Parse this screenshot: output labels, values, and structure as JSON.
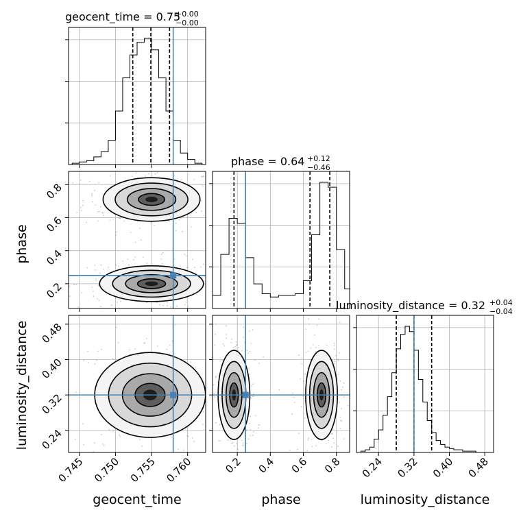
{
  "chart_data": {
    "type": "corner",
    "truth_color": "#4682b4",
    "parameters": [
      {
        "name": "geocent_time",
        "title": {
          "base": "geocent_time = 0.75",
          "upper": "+0.00",
          "lower": "−0.00"
        },
        "range": [
          0.7435,
          0.7625
        ],
        "ticks": [
          "0.745",
          "0.750",
          "0.755",
          "0.760"
        ],
        "truth": 0.758,
        "quantiles": [
          0.7524,
          0.7549,
          0.7575
        ],
        "hist_bins": [
          0.744,
          0.745,
          0.746,
          0.747,
          0.748,
          0.749,
          0.75,
          0.751,
          0.752,
          0.753,
          0.754,
          0.755,
          0.756,
          0.757,
          0.758,
          0.759,
          0.76,
          0.761,
          0.762
        ],
        "hist_counts": [
          1,
          2,
          3,
          6,
          10,
          19,
          42,
          68,
          86,
          96,
          99,
          90,
          68,
          42,
          19,
          9,
          4,
          1
        ]
      },
      {
        "name": "phase",
        "title": {
          "base": "phase = 0.64",
          "upper": "+0.12",
          "lower": "−0.46"
        },
        "range": [
          0.05,
          0.88
        ],
        "ticks": [
          "0.2",
          "0.4",
          "0.6",
          "0.8"
        ],
        "truth": 0.25,
        "quantiles": [
          0.18,
          0.64,
          0.76
        ],
        "hist_bins": [
          0.05,
          0.1,
          0.15,
          0.2,
          0.25,
          0.3,
          0.35,
          0.4,
          0.45,
          0.5,
          0.55,
          0.6,
          0.65,
          0.7,
          0.75,
          0.8,
          0.85,
          0.88
        ],
        "hist_counts": [
          8,
          33,
          55,
          52,
          31,
          15,
          9,
          7,
          8,
          8,
          9,
          17,
          45,
          77,
          74,
          36,
          12
        ]
      },
      {
        "name": "luminosity_distance",
        "title": {
          "base": "luminosity_distance = 0.32",
          "upper": "+0.04",
          "lower": "−0.04"
        },
        "range": [
          0.19,
          0.5
        ],
        "ticks": [
          "0.24",
          "0.32",
          "0.40",
          "0.48"
        ],
        "truth": 0.32,
        "quantiles": [
          0.28,
          0.32,
          0.36
        ],
        "hist_bins": [
          0.2,
          0.21,
          0.22,
          0.23,
          0.24,
          0.25,
          0.26,
          0.27,
          0.28,
          0.29,
          0.3,
          0.31,
          0.32,
          0.33,
          0.34,
          0.35,
          0.36,
          0.37,
          0.38,
          0.39,
          0.4,
          0.41,
          0.42,
          0.43,
          0.44,
          0.45,
          0.46,
          0.47,
          0.48,
          0.49
        ],
        "hist_counts": [
          1,
          2,
          4,
          10,
          17,
          28,
          42,
          60,
          78,
          89,
          95,
          91,
          77,
          55,
          38,
          24,
          15,
          9,
          6,
          4,
          3,
          2,
          2,
          1,
          1,
          1,
          0,
          0,
          0
        ]
      }
    ],
    "pair_modes": [
      {
        "x": 0,
        "y": 1,
        "modes": [
          {
            "cx": 0.755,
            "cy": 0.71,
            "sx": 0.0028,
            "sy": 0.055
          },
          {
            "cx": 0.755,
            "cy": 0.2,
            "sx": 0.003,
            "sy": 0.045
          }
        ]
      },
      {
        "x": 0,
        "y": 2,
        "modes": [
          {
            "cx": 0.7548,
            "cy": 0.32,
            "sx": 0.0032,
            "sy": 0.04
          }
        ]
      },
      {
        "x": 1,
        "y": 2,
        "modes": [
          {
            "cx": 0.18,
            "cy": 0.32,
            "sx": 0.04,
            "sy": 0.042
          },
          {
            "cx": 0.71,
            "cy": 0.32,
            "sx": 0.04,
            "sy": 0.042
          }
        ]
      }
    ]
  }
}
